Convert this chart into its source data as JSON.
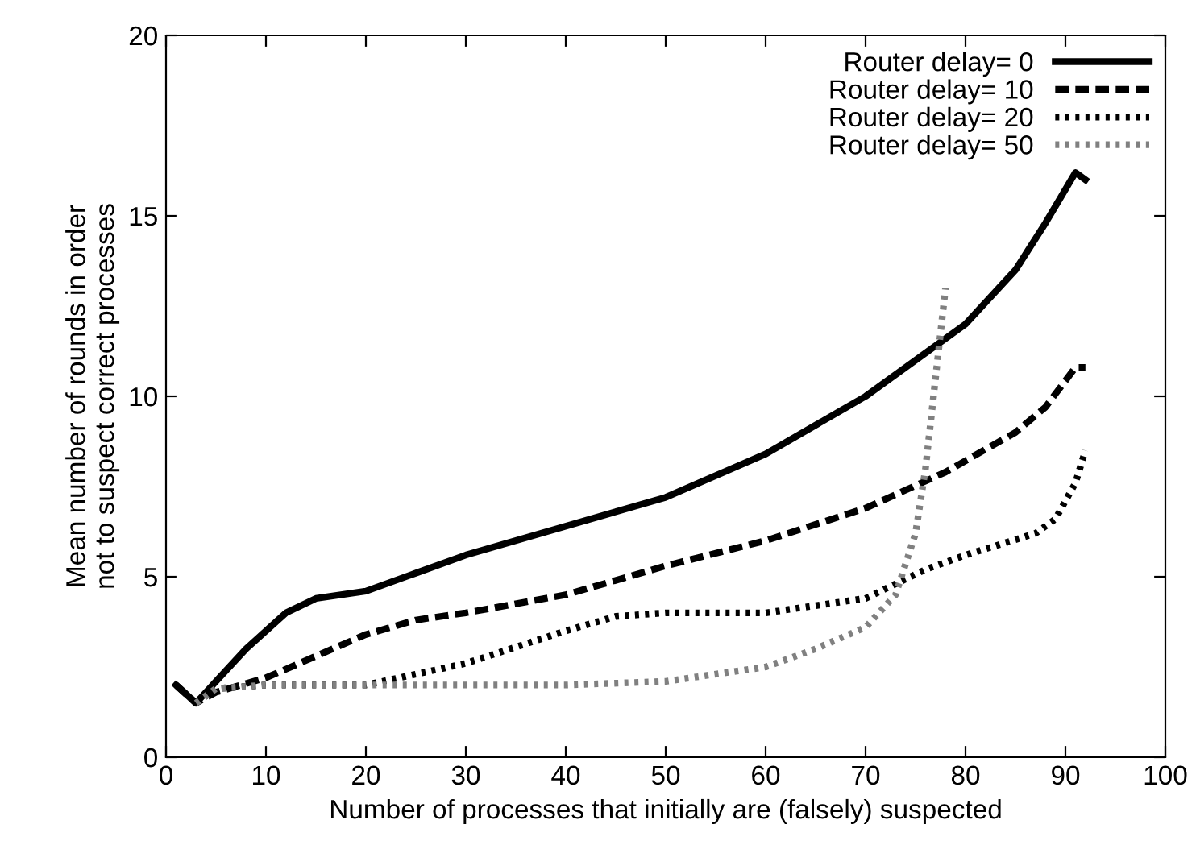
{
  "chart_data": {
    "type": "line",
    "xlabel": "Number of processes that initially are (falsely) suspected",
    "ylabel": "Mean number of rounds in order\nnot to suspect correct processes",
    "xlim": [
      0,
      100
    ],
    "ylim": [
      0,
      20
    ],
    "xticks": [
      0,
      10,
      20,
      30,
      40,
      50,
      60,
      70,
      80,
      90,
      100
    ],
    "yticks": [
      0,
      5,
      10,
      15,
      20
    ],
    "grid": false,
    "legend": "top right",
    "marker": "none",
    "series": [
      {
        "name": "Router delay= 0",
        "color": "#000000",
        "line_style": "solid",
        "x": [
          1,
          3,
          5,
          8,
          12,
          15,
          20,
          25,
          30,
          40,
          50,
          60,
          70,
          80,
          85,
          88,
          91,
          92
        ],
        "values": [
          2,
          1.5,
          2.1,
          3,
          4,
          4.4,
          4.6,
          5.1,
          5.6,
          6.4,
          7.2,
          8.4,
          10,
          12,
          13.5,
          14.8,
          16.2,
          16
        ]
      },
      {
        "name": "Router delay= 10",
        "color": "#000000",
        "line_style": "dashed",
        "x": [
          1,
          3,
          5,
          10,
          15,
          20,
          25,
          30,
          40,
          50,
          60,
          70,
          78,
          85,
          88,
          91,
          92
        ],
        "values": [
          2,
          1.5,
          1.8,
          2.2,
          2.8,
          3.4,
          3.8,
          4,
          4.5,
          5.3,
          6,
          6.9,
          7.9,
          9,
          9.7,
          10.8,
          10.8
        ]
      },
      {
        "name": "Router delay= 20",
        "color": "#000000",
        "line_style": "dotted",
        "x": [
          3,
          5,
          10,
          20,
          30,
          40,
          45,
          50,
          60,
          70,
          76,
          80,
          87,
          89,
          91,
          92
        ],
        "values": [
          1.5,
          1.9,
          2,
          2,
          2.6,
          3.5,
          3.9,
          4,
          4,
          4.4,
          5.2,
          5.6,
          6.2,
          6.6,
          7.6,
          8.5
        ]
      },
      {
        "name": "Router delay= 50",
        "color": "#808080",
        "line_style": "dotted",
        "x": [
          3,
          5,
          10,
          20,
          40,
          50,
          60,
          65,
          70,
          73,
          75,
          76,
          77,
          78
        ],
        "values": [
          1.5,
          1.9,
          2,
          2,
          2,
          2.1,
          2.5,
          3,
          3.6,
          4.5,
          6.2,
          8,
          10.5,
          13
        ]
      }
    ]
  }
}
